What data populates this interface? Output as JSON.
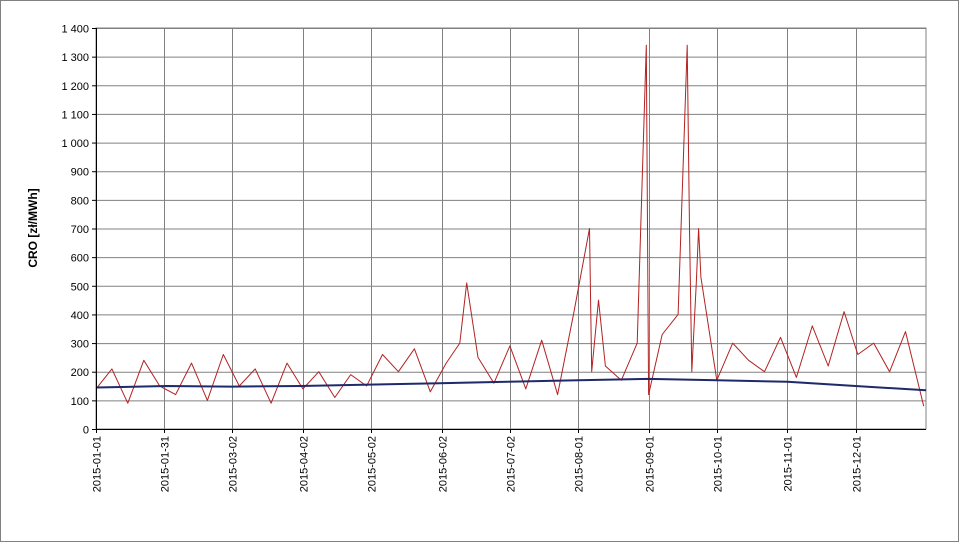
{
  "chart_data": {
    "type": "line",
    "title": "",
    "xlabel": "",
    "ylabel": "CRO [zł/MWh]",
    "ylim": [
      0,
      1400
    ],
    "yticks": [
      0,
      100,
      200,
      300,
      400,
      500,
      600,
      700,
      800,
      900,
      1000,
      1100,
      1200,
      1300,
      1400
    ],
    "ytick_labels": [
      "0",
      "100",
      "200",
      "300",
      "400",
      "500",
      "600",
      "700",
      "800",
      "900",
      "1 000",
      "1 100",
      "1 200",
      "1 300",
      "1 400"
    ],
    "xlim": [
      "2015-01-01",
      "2016-01-01"
    ],
    "xtick_labels": [
      "2015-01-01",
      "2015-01-31",
      "2015-03-02",
      "2015-04-02",
      "2015-05-02",
      "2015-06-02",
      "2015-07-02",
      "2015-08-01",
      "2015-09-01",
      "2015-10-01",
      "2015-11-01",
      "2015-12-01"
    ],
    "grid": true,
    "legend": "none",
    "series": [
      {
        "color": "#b22222",
        "x": [
          "2015-01-01",
          "2015-01-08",
          "2015-01-15",
          "2015-01-22",
          "2015-01-29",
          "2015-02-05",
          "2015-02-12",
          "2015-02-19",
          "2015-02-26",
          "2015-03-05",
          "2015-03-12",
          "2015-03-19",
          "2015-03-26",
          "2015-04-02",
          "2015-04-09",
          "2015-04-16",
          "2015-04-23",
          "2015-04-30",
          "2015-05-07",
          "2015-05-14",
          "2015-05-21",
          "2015-05-28",
          "2015-06-04",
          "2015-06-10",
          "2015-06-13",
          "2015-06-18",
          "2015-06-25",
          "2015-07-02",
          "2015-07-09",
          "2015-07-16",
          "2015-07-23",
          "2015-07-30",
          "2015-08-06",
          "2015-08-07",
          "2015-08-10",
          "2015-08-13",
          "2015-08-20",
          "2015-08-27",
          "2015-08-31",
          "2015-09-01",
          "2015-09-07",
          "2015-09-14",
          "2015-09-18",
          "2015-09-19",
          "2015-09-20",
          "2015-09-22",
          "2015-09-23",
          "2015-09-24",
          "2015-10-01",
          "2015-10-08",
          "2015-10-15",
          "2015-10-22",
          "2015-10-29",
          "2015-11-05",
          "2015-11-12",
          "2015-11-19",
          "2015-11-26",
          "2015-12-02",
          "2015-12-09",
          "2015-12-16",
          "2015-12-23",
          "2015-12-31"
        ],
        "values": [
          140,
          210,
          90,
          240,
          150,
          120,
          230,
          100,
          260,
          150,
          210,
          90,
          230,
          140,
          200,
          110,
          190,
          150,
          260,
          200,
          280,
          130,
          230,
          300,
          510,
          250,
          160,
          290,
          140,
          310,
          120,
          400,
          700,
          200,
          450,
          220,
          170,
          300,
          1340,
          120,
          330,
          400,
          1340,
          700,
          200,
          510,
          700,
          530,
          170,
          300,
          240,
          200,
          320,
          180,
          360,
          220,
          410,
          260,
          300,
          200,
          340,
          80
        ]
      },
      {
        "color": "#1f2a6b",
        "x": [
          "2015-01-01",
          "2015-02-01",
          "2015-03-01",
          "2015-04-01",
          "2015-05-01",
          "2015-06-01",
          "2015-07-01",
          "2015-08-01",
          "2015-09-01",
          "2015-10-01",
          "2015-11-01",
          "2015-12-01",
          "2016-01-01"
        ],
        "values": [
          145,
          150,
          148,
          150,
          155,
          160,
          165,
          170,
          175,
          170,
          165,
          150,
          135
        ]
      }
    ]
  }
}
